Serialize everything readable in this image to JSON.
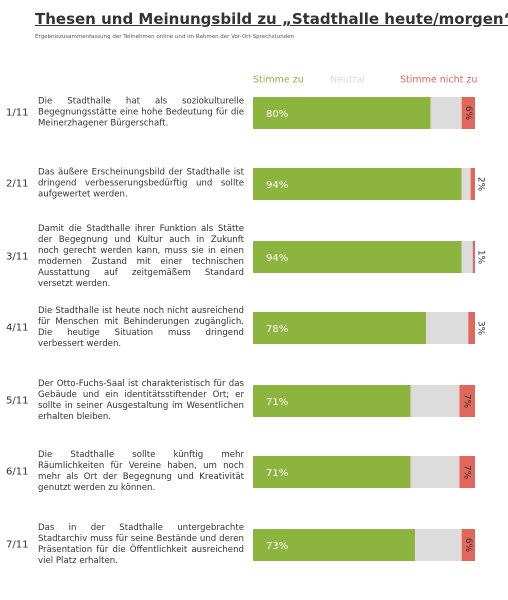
{
  "chart_data": {
    "type": "bar",
    "orientation": "horizontal",
    "stacked": true,
    "title": "Thesen und Meinungsbild zu „Stadthalle heute/morgen“",
    "subtitle": "Ergebniszusammenfassung der Teilnehmen online und im Rahmen der Vor-Ort-Sprechstunden",
    "numbers": [
      "1/11",
      "2/11",
      "3/11",
      "4/11",
      "5/11",
      "6/11",
      "7/11"
    ],
    "categories": [
      "Die Stadthalle hat als soziokulturelle Begegnungsstätte eine hohe Bedeutung für die Meinerzhagener Bürgerschaft.",
      "Das äußere Erscheinungsbild der Stadthalle ist dringend verbesserungsbedürftig und sollte aufgewertet werden.",
      "Damit die Stadthalle ihrer Funktion als Stätte der Begegnung und Kultur auch in Zukunft noch gerecht werden kann, muss sie in einen modernen Zustand mit einer technischen Ausstattung auf zeitgemäßem Standard versetzt werden.",
      "Die Stadthalle ist heute noch nicht ausreichend für Menschen mit Behinderungen zugänglich. Die heutige Situation muss dringend verbessert werden.",
      "Der Otto-Fuchs-Saal ist charakteristisch für das Gebäude und ein identitätsstiftender Ort; er sollte in seiner Ausgestaltung im Wesentlichen erhalten bleiben.",
      "Die Stadthalle sollte künftig mehr Räumlichkeiten für Vereine haben, um noch mehr als Ort der Begegnung und Kreativität genutzt werden zu können.",
      "Das in der Stadthalle untergebrachte Stadtarchiv muss für seine Bestände und deren Präsentation für die Öffentlichkeit ausreichend viel Platz erhalten."
    ],
    "xlim": [
      0,
      100
    ],
    "series": [
      {
        "name": "Stimme zu",
        "color": "#8cb43f",
        "values": [
          80,
          94,
          94,
          78,
          71,
          71,
          73
        ],
        "value_labels": [
          "80%",
          "94%",
          "94%",
          "78%",
          "71%",
          "71%",
          "73%"
        ]
      },
      {
        "name": "Neutral",
        "color": "#dcdcdc",
        "values": [
          14,
          4,
          5,
          19,
          22,
          22,
          21
        ]
      },
      {
        "name": "Stimme nicht zu",
        "color": "#e0675a",
        "values": [
          6,
          2,
          1,
          3,
          7,
          7,
          6
        ],
        "value_labels": [
          "6%",
          "2%",
          "1%",
          "3%",
          "7%",
          "7%",
          "6%"
        ]
      }
    ]
  }
}
